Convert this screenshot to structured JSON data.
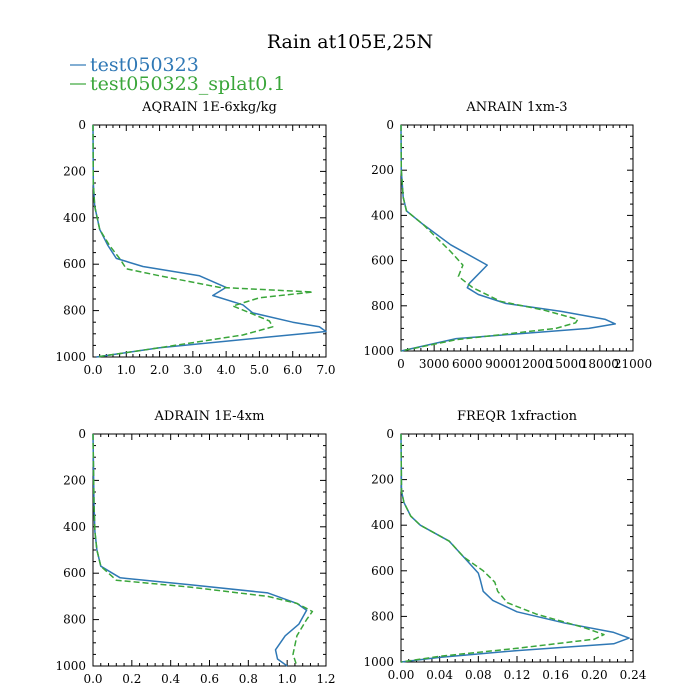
{
  "title": "Rain at105E,25N",
  "colors": {
    "series1": "#2f78b5",
    "series2": "#3aa63a",
    "axis": "#000000"
  },
  "legend": [
    {
      "label": "test050323",
      "color": "#2f78b5",
      "dash": "solid"
    },
    {
      "label": "test050323_splat0.1",
      "color": "#3aa63a",
      "dash": "dashed"
    }
  ],
  "chart_data": [
    {
      "type": "line",
      "title": "AQRAIN  1E-6xkg/kg",
      "xlim": [
        0,
        7
      ],
      "ylim": [
        0,
        1000
      ],
      "y_reversed": true,
      "x_ticks": [
        0,
        1,
        2,
        3,
        4,
        5,
        6,
        7
      ],
      "x_tick_labels": [
        "0.0",
        "1.0",
        "2.0",
        "3.0",
        "4.0",
        "5.0",
        "6.0",
        "7.0"
      ],
      "y_ticks": [
        0,
        200,
        400,
        600,
        800,
        1000
      ],
      "y_tick_labels": [
        "0",
        "200",
        "400",
        "600",
        "800",
        "1000"
      ],
      "series": [
        {
          "name": "test050323",
          "x": [
            0,
            0.01,
            0.05,
            0.2,
            0.45,
            0.7,
            1.5,
            3.2,
            4.0,
            3.6,
            4.5,
            4.8,
            6.0,
            6.8,
            7.0,
            5.2,
            2.0,
            0.1
          ],
          "y": [
            0,
            250,
            350,
            450,
            520,
            575,
            610,
            650,
            700,
            735,
            775,
            810,
            850,
            870,
            890,
            915,
            960,
            1000
          ]
        },
        {
          "name": "test050323_splat0.1",
          "x": [
            0,
            0.01,
            0.05,
            0.2,
            0.5,
            0.8,
            1.0,
            2.0,
            3.8,
            6.6,
            5.0,
            4.2,
            4.8,
            5.3,
            5.4,
            4.5,
            2.0,
            0.1
          ],
          "y": [
            0,
            250,
            350,
            450,
            520,
            575,
            620,
            650,
            700,
            720,
            745,
            780,
            815,
            845,
            870,
            905,
            960,
            1000
          ]
        }
      ]
    },
    {
      "type": "line",
      "title": "ANRAIN  1xm-3",
      "xlim": [
        0,
        21000
      ],
      "ylim": [
        0,
        1000
      ],
      "y_reversed": true,
      "x_ticks": [
        0,
        3000,
        6000,
        9000,
        12000,
        15000,
        18000,
        21000
      ],
      "x_tick_labels": [
        "0",
        "3000",
        "6000",
        "9000",
        "12000",
        "15000",
        "18000",
        "21000"
      ],
      "y_ticks": [
        0,
        200,
        400,
        600,
        800,
        1000
      ],
      "y_tick_labels": [
        "0",
        "200",
        "400",
        "600",
        "800",
        "1000"
      ],
      "series": [
        {
          "name": "test050323",
          "x": [
            0,
            30,
            200,
            500,
            2000,
            4500,
            7800,
            6200,
            6000,
            7000,
            9500,
            14500,
            18500,
            19400,
            17000,
            5000,
            0
          ],
          "y": [
            0,
            200,
            320,
            380,
            440,
            530,
            620,
            700,
            720,
            750,
            790,
            825,
            860,
            880,
            900,
            945,
            1000
          ]
        },
        {
          "name": "test050323_splat0.1",
          "x": [
            0,
            30,
            200,
            500,
            2000,
            4500,
            5600,
            5200,
            6500,
            9000,
            13000,
            16000,
            15800,
            14000,
            5000,
            0
          ],
          "y": [
            0,
            200,
            320,
            380,
            440,
            560,
            620,
            670,
            720,
            780,
            820,
            860,
            875,
            900,
            950,
            1000
          ]
        }
      ]
    },
    {
      "type": "line",
      "title": "ADRAIN  1E-4xm",
      "xlim": [
        0,
        1.2
      ],
      "ylim": [
        0,
        1000
      ],
      "y_reversed": true,
      "x_ticks": [
        0,
        0.2,
        0.4,
        0.6,
        0.8,
        1.0,
        1.2
      ],
      "x_tick_labels": [
        "0.0",
        "0.2",
        "0.4",
        "0.6",
        "0.8",
        "1.0",
        "1.2"
      ],
      "y_ticks": [
        0,
        200,
        400,
        600,
        800,
        1000
      ],
      "y_tick_labels": [
        "0",
        "200",
        "400",
        "600",
        "800",
        "1000"
      ],
      "series": [
        {
          "name": "test050323",
          "x": [
            0,
            0.005,
            0.01,
            0.02,
            0.04,
            0.1,
            0.14,
            0.5,
            0.9,
            1.05,
            1.1,
            1.06,
            0.99,
            0.94,
            0.95,
            1.0
          ],
          "y": [
            0,
            300,
            420,
            500,
            570,
            600,
            620,
            650,
            685,
            730,
            760,
            820,
            870,
            930,
            970,
            1000
          ]
        },
        {
          "name": "test050323_splat0.1",
          "x": [
            0,
            0.005,
            0.01,
            0.02,
            0.04,
            0.08,
            0.12,
            0.5,
            0.9,
            1.05,
            1.13,
            1.1,
            1.05,
            1.03,
            1.05
          ],
          "y": [
            0,
            300,
            420,
            500,
            570,
            600,
            630,
            660,
            700,
            730,
            765,
            800,
            870,
            950,
            1000
          ]
        }
      ]
    },
    {
      "type": "line",
      "title": "FREQR  1xfraction",
      "xlim": [
        0,
        0.24
      ],
      "ylim": [
        0,
        1000
      ],
      "y_reversed": true,
      "x_ticks": [
        0,
        0.04,
        0.08,
        0.12,
        0.16,
        0.2,
        0.24
      ],
      "x_tick_labels": [
        "0.00",
        "0.04",
        "0.08",
        "0.12",
        "0.16",
        "0.20",
        "0.24"
      ],
      "y_ticks": [
        0,
        200,
        400,
        600,
        800,
        1000
      ],
      "y_tick_labels": [
        "0",
        "200",
        "400",
        "600",
        "800",
        "1000"
      ],
      "series": [
        {
          "name": "test050323",
          "x": [
            0,
            0.0005,
            0.003,
            0.01,
            0.02,
            0.05,
            0.065,
            0.08,
            0.082,
            0.085,
            0.095,
            0.12,
            0.17,
            0.22,
            0.236,
            0.22,
            0.12,
            0.04,
            0
          ],
          "y": [
            0,
            250,
            300,
            360,
            400,
            470,
            540,
            610,
            640,
            690,
            730,
            780,
            830,
            870,
            895,
            920,
            950,
            980,
            1000
          ]
        },
        {
          "name": "test050323_splat0.1",
          "x": [
            0,
            0.0005,
            0.003,
            0.01,
            0.02,
            0.05,
            0.065,
            0.085,
            0.09,
            0.097,
            0.1,
            0.11,
            0.14,
            0.19,
            0.21,
            0.2,
            0.12,
            0.04,
            0
          ],
          "y": [
            0,
            250,
            300,
            360,
            400,
            470,
            540,
            600,
            620,
            650,
            690,
            740,
            790,
            850,
            880,
            900,
            940,
            975,
            1000
          ]
        }
      ]
    }
  ]
}
